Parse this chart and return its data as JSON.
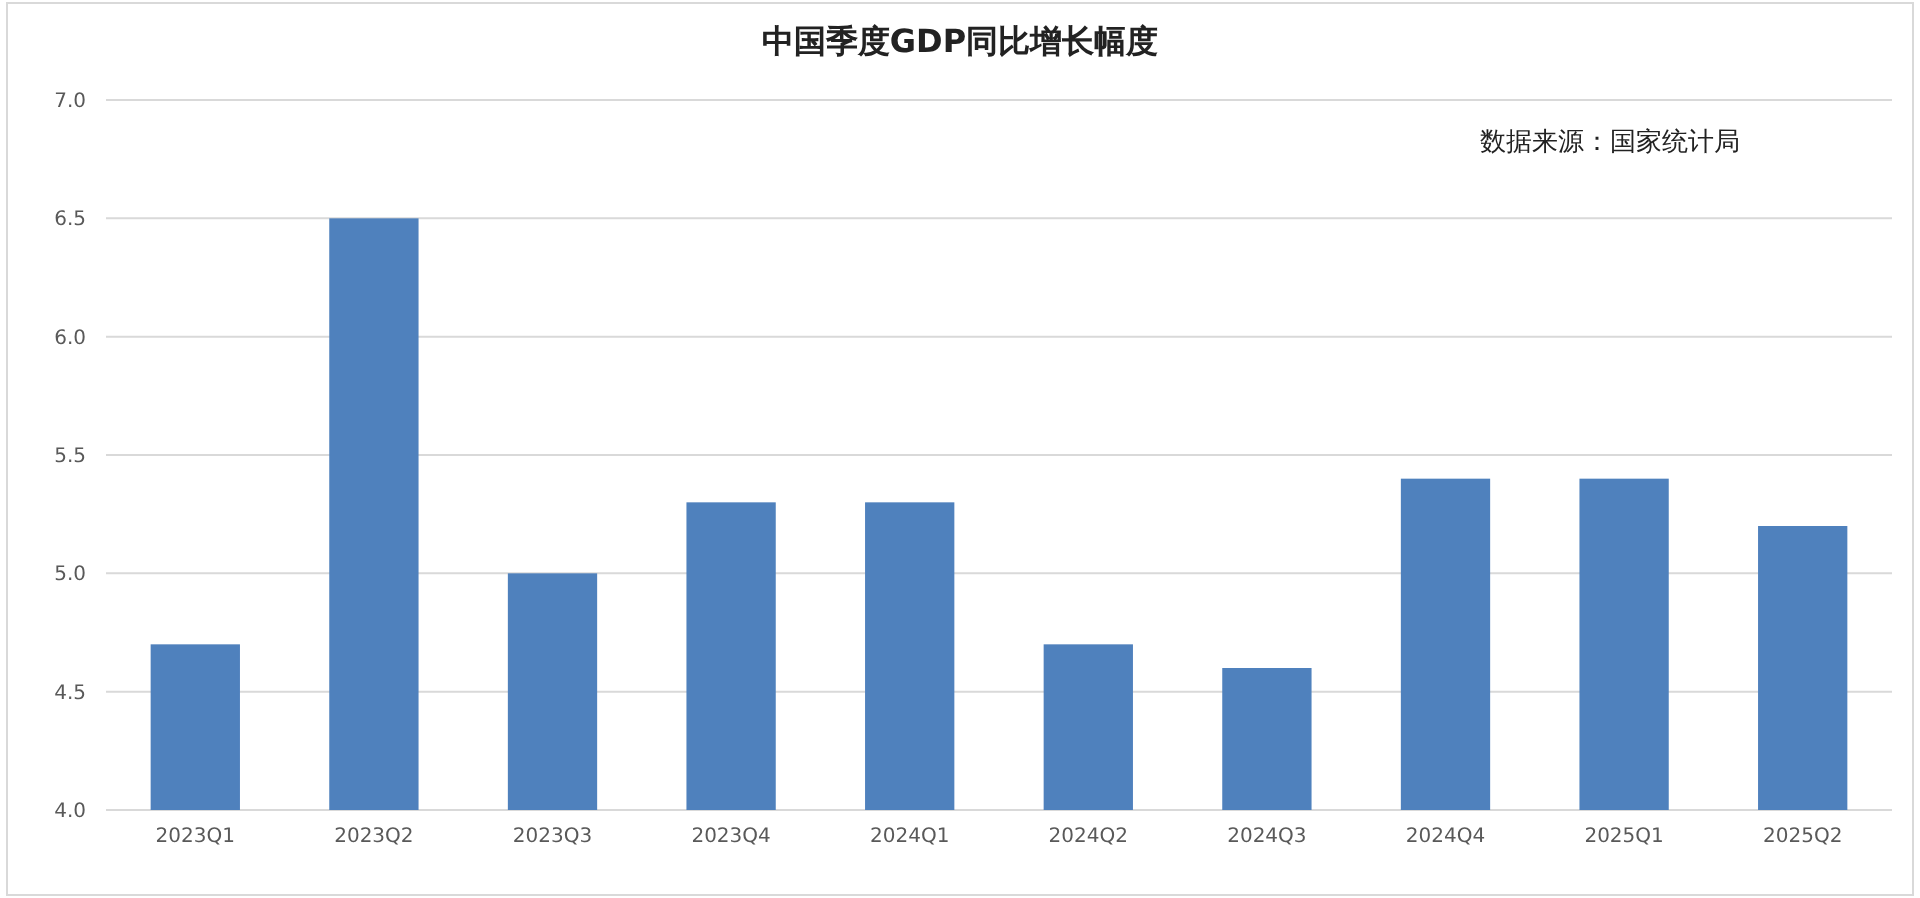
{
  "chart_data": {
    "type": "bar",
    "title": "中国季度GDP同比增长幅度",
    "categories": [
      "2023Q1",
      "2023Q2",
      "2023Q3",
      "2023Q4",
      "2024Q1",
      "2024Q2",
      "2024Q3",
      "2024Q4",
      "2025Q1",
      "2025Q2"
    ],
    "values": [
      4.7,
      6.5,
      5.0,
      5.3,
      5.3,
      4.7,
      4.6,
      5.4,
      5.4,
      5.2
    ],
    "color": "#4f81bd",
    "ylim": [
      4.0,
      7.0
    ],
    "yticks": [
      {
        "value": 4.0,
        "label": "4.0"
      },
      {
        "value": 4.5,
        "label": "4.5"
      },
      {
        "value": 5.0,
        "label": "5.0"
      },
      {
        "value": 5.5,
        "label": "5.5"
      },
      {
        "value": 6.0,
        "label": "6.0"
      },
      {
        "value": 6.5,
        "label": "6.5"
      },
      {
        "value": 7.0,
        "label": "7.0"
      }
    ],
    "grid": "y",
    "annotations": [
      "数据来源：国家统计局"
    ]
  }
}
